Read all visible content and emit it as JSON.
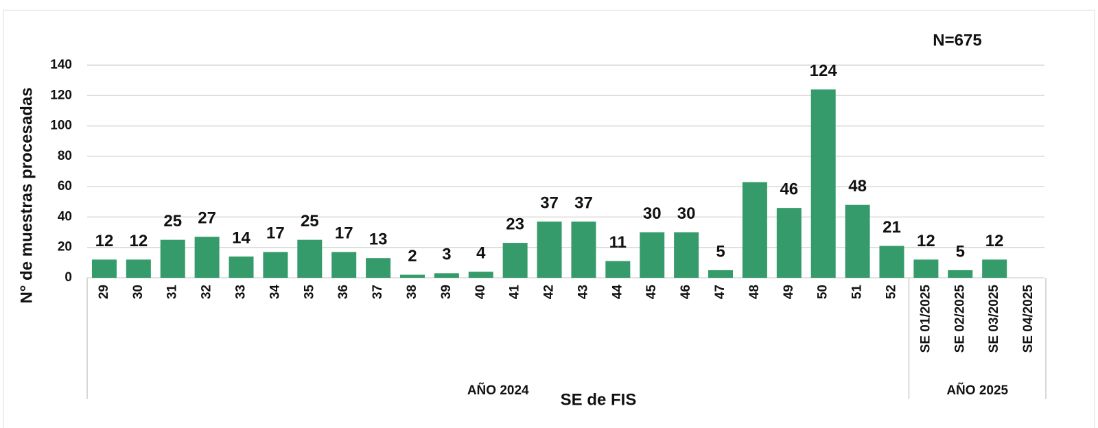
{
  "chart_data": {
    "type": "bar",
    "annotation": "N=675",
    "xlabel": "SE de FIS",
    "ylabel": "N° de muestras procesadas",
    "categories": [
      "29",
      "30",
      "31",
      "32",
      "33",
      "34",
      "35",
      "36",
      "37",
      "38",
      "39",
      "40",
      "41",
      "42",
      "43",
      "44",
      "45",
      "46",
      "47",
      "48",
      "49",
      "50",
      "51",
      "52",
      "SE 01/2025",
      "SE 02/2025",
      "SE 03/2025",
      "SE 04/2025"
    ],
    "values": [
      12,
      12,
      25,
      27,
      14,
      17,
      25,
      17,
      13,
      2,
      3,
      4,
      23,
      37,
      37,
      11,
      30,
      30,
      5,
      63,
      46,
      124,
      48,
      21,
      12,
      5,
      12,
      null
    ],
    "value_labels": [
      "12",
      "12",
      "25",
      "27",
      "14",
      "17",
      "25",
      "17",
      "13",
      "2",
      "3",
      "4",
      "23",
      "37",
      "37",
      "11",
      "30",
      "30",
      "5",
      null,
      "46",
      "124",
      "48",
      "21",
      "12",
      "5",
      "12",
      null
    ],
    "groups": [
      {
        "label": "AÑO 2024",
        "count": 24
      },
      {
        "label": "AÑO 2025",
        "count": 4
      }
    ],
    "color": "#359b6a",
    "ylim": [
      0,
      140
    ],
    "yticks": [
      0,
      20,
      40,
      60,
      80,
      100,
      120,
      140
    ],
    "grid": true
  }
}
